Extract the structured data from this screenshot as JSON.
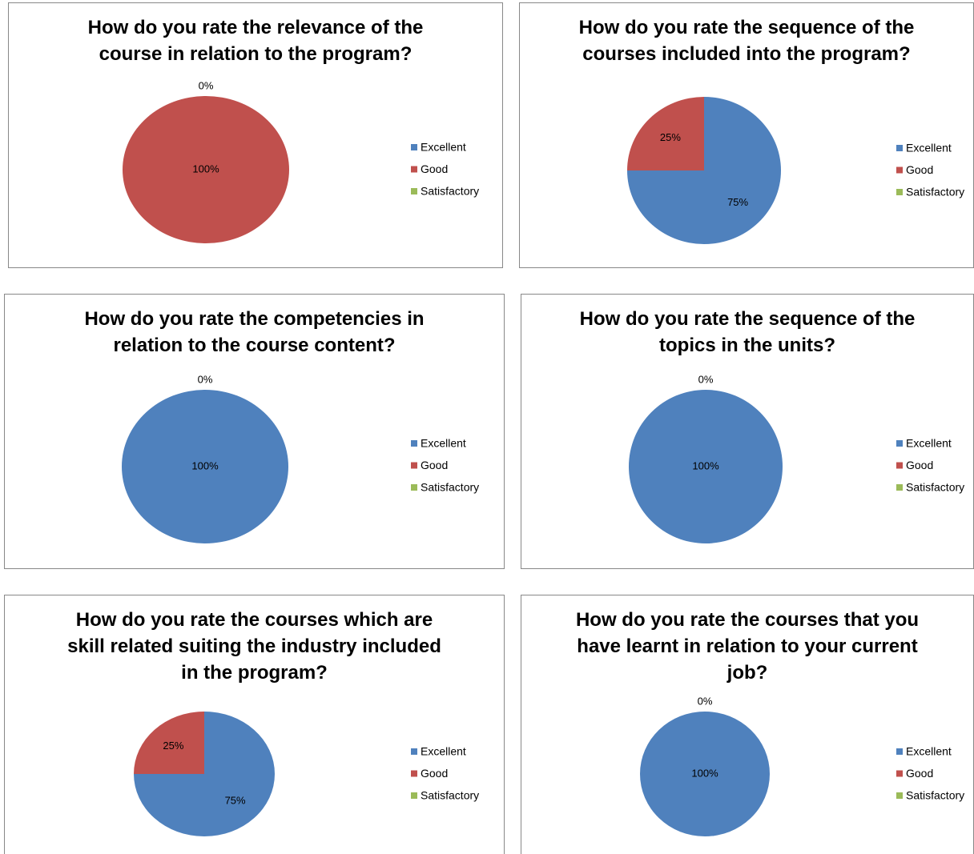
{
  "chart_data": [
    {
      "type": "pie",
      "title": "How do you rate the relevance of the course in relation to the program?",
      "categories": [
        "Excellent",
        "Good",
        "Satisfactory"
      ],
      "values": [
        0,
        100,
        0
      ],
      "value_labels": [
        "0%",
        "100%",
        null
      ],
      "colors": [
        "#4f81bd",
        "#c0504d",
        "#9bbb59"
      ]
    },
    {
      "type": "pie",
      "title": "How do you rate the sequence of the courses included into the program?",
      "categories": [
        "Excellent",
        "Good",
        "Satisfactory"
      ],
      "values": [
        75,
        25,
        0
      ],
      "value_labels": [
        "75%",
        "25%",
        null
      ],
      "colors": [
        "#4f81bd",
        "#c0504d",
        "#9bbb59"
      ]
    },
    {
      "type": "pie",
      "title": "How do you rate the competencies in relation to the course content?",
      "categories": [
        "Excellent",
        "Good",
        "Satisfactory"
      ],
      "values": [
        100,
        0,
        0
      ],
      "value_labels": [
        "100%",
        "0%",
        null
      ],
      "colors": [
        "#4f81bd",
        "#c0504d",
        "#9bbb59"
      ]
    },
    {
      "type": "pie",
      "title": "How do you rate the sequence of the topics in the units?",
      "categories": [
        "Excellent",
        "Good",
        "Satisfactory"
      ],
      "values": [
        100,
        0,
        0
      ],
      "value_labels": [
        "100%",
        "0%",
        null
      ],
      "colors": [
        "#4f81bd",
        "#c0504d",
        "#9bbb59"
      ]
    },
    {
      "type": "pie",
      "title": "How do you rate the courses which are skill related suiting the industry included in the program?",
      "categories": [
        "Excellent",
        "Good",
        "Satisfactory"
      ],
      "values": [
        75,
        25,
        0
      ],
      "value_labels": [
        "75%",
        "25%",
        null
      ],
      "colors": [
        "#4f81bd",
        "#c0504d",
        "#9bbb59"
      ]
    },
    {
      "type": "pie",
      "title": "How do you rate the courses that you have learnt in relation to your current job?",
      "categories": [
        "Excellent",
        "Good",
        "Satisfactory"
      ],
      "values": [
        100,
        0,
        0
      ],
      "value_labels": [
        "100%",
        "0%",
        null
      ],
      "colors": [
        "#4f81bd",
        "#c0504d",
        "#9bbb59"
      ]
    }
  ]
}
